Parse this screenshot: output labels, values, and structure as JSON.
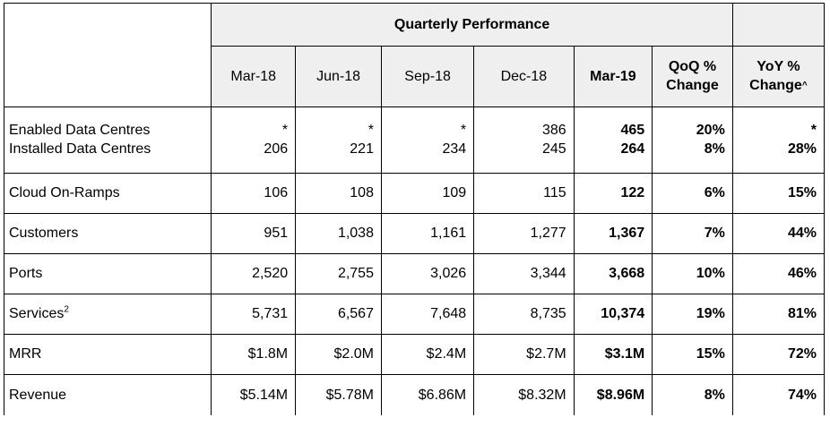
{
  "header": {
    "title": "Quarterly Performance",
    "columns": [
      "Mar-18",
      "Jun-18",
      "Sep-18",
      "Dec-18",
      "Mar-19"
    ],
    "qoq_line1": "QoQ %",
    "qoq_line2": "Change",
    "yoy_line1": "YoY %",
    "yoy_line2": "Change",
    "yoy_marker": "^"
  },
  "data_centres": {
    "label_enabled": "Enabled Data Centres",
    "label_installed": "Installed Data Centres",
    "enabled": [
      "*",
      "*",
      "*",
      "386",
      "465",
      "20%",
      "*"
    ],
    "installed": [
      "206",
      "221",
      "234",
      "245",
      "264",
      "8%",
      "28%"
    ]
  },
  "rows": [
    {
      "label": "Cloud On-Ramps",
      "values": [
        "106",
        "108",
        "109",
        "115",
        "122",
        "6%",
        "15%"
      ]
    },
    {
      "label": "Customers",
      "values": [
        "951",
        "1,038",
        "1,161",
        "1,277",
        "1,367",
        "7%",
        "44%"
      ]
    },
    {
      "label": "Ports",
      "values": [
        "2,520",
        "2,755",
        "3,026",
        "3,344",
        "3,668",
        "10%",
        "46%"
      ]
    },
    {
      "label": "Services",
      "footnote": "2",
      "values": [
        "5,731",
        "6,567",
        "7,648",
        "8,735",
        "10,374",
        "19%",
        "81%"
      ]
    },
    {
      "label": "MRR",
      "values": [
        "$1.8M",
        "$2.0M",
        "$2.4M",
        "$2.7M",
        "$3.1M",
        "15%",
        "72%"
      ]
    },
    {
      "label": "Revenue",
      "values": [
        "$5.14M",
        "$5.78M",
        "$6.86M",
        "$8.32M",
        "$8.96M",
        "8%",
        "74%"
      ]
    }
  ]
}
